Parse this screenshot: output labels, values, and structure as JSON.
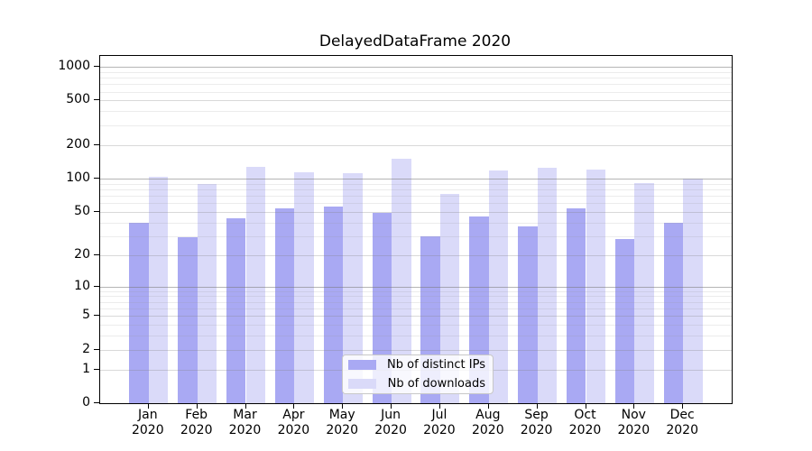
{
  "chart_data": {
    "type": "bar",
    "title": "DelayedDataFrame 2020",
    "x_tick_year": "2020",
    "categories": [
      "Jan",
      "Feb",
      "Mar",
      "Apr",
      "May",
      "Jun",
      "Jul",
      "Aug",
      "Sep",
      "Oct",
      "Nov",
      "Dec"
    ],
    "series": [
      {
        "name": "Nb of distinct IPs",
        "color": "#a9a9f3",
        "values": [
          40,
          29,
          44,
          54,
          56,
          49,
          30,
          45,
          37,
          54,
          28,
          40
        ]
      },
      {
        "name": "Nb of downloads",
        "color": "#dadaf9",
        "values": [
          103,
          90,
          128,
          114,
          111,
          150,
          73,
          119,
          125,
          120,
          91,
          99
        ]
      }
    ],
    "yscale": "log1p",
    "ylim": [
      0,
      1250
    ],
    "yticks": [
      0,
      1,
      2,
      5,
      10,
      20,
      50,
      100,
      200,
      500,
      1000
    ],
    "grid": {
      "strong_lines": [
        10,
        100,
        1000
      ],
      "light_lines": [
        1,
        2,
        5,
        20,
        50,
        200,
        500
      ],
      "minor_lines": [
        3,
        4,
        6,
        7,
        8,
        9,
        30,
        40,
        60,
        70,
        80,
        90,
        300,
        400,
        600,
        700,
        800,
        900
      ]
    },
    "legend_position": "lower center"
  }
}
